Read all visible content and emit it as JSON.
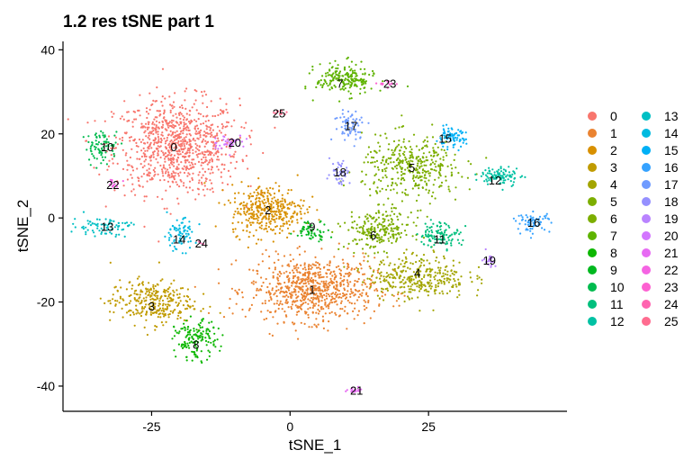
{
  "chart_data": {
    "type": "scatter",
    "title": "1.2 res tSNE part 1",
    "xlabel": "tSNE_1",
    "ylabel": "tSNE_2",
    "xlim": [
      -41,
      50
    ],
    "ylim": [
      -46,
      42
    ],
    "x_ticks": [
      -25,
      0,
      25
    ],
    "y_ticks": [
      -40,
      -20,
      0,
      20,
      40
    ],
    "grid": false,
    "legend_position": "right",
    "clusters": [
      {
        "id": "0",
        "color": "#F8766D",
        "cx": -20.5,
        "cy": 17,
        "sx": 7.5,
        "sy": 7.5,
        "n": 900
      },
      {
        "id": "1",
        "color": "#EA8331",
        "cx": 4,
        "cy": -17,
        "sx": 7.5,
        "sy": 5,
        "n": 750
      },
      {
        "id": "2",
        "color": "#D89000",
        "cx": -4,
        "cy": 2,
        "sx": 4.5,
        "sy": 4,
        "n": 380
      },
      {
        "id": "3",
        "color": "#C09B00",
        "cx": -25,
        "cy": -20,
        "sx": 5,
        "sy": 3.5,
        "n": 300
      },
      {
        "id": "4",
        "color": "#A3A500",
        "cx": 23,
        "cy": -14,
        "sx": 6,
        "sy": 3.5,
        "n": 330
      },
      {
        "id": "5",
        "color": "#7CAE00",
        "cx": 22,
        "cy": 12,
        "sx": 6,
        "sy": 5,
        "n": 380
      },
      {
        "id": "6",
        "color": "#7CAE00",
        "cx": 16,
        "cy": -3,
        "sx": 4,
        "sy": 3,
        "n": 230
      },
      {
        "id": "7",
        "color": "#5EB300",
        "cx": 10,
        "cy": 33,
        "sx": 3.5,
        "sy": 2.5,
        "n": 200
      },
      {
        "id": "8",
        "color": "#0CB702",
        "cx": -17,
        "cy": -29,
        "sx": 2.5,
        "sy": 3,
        "n": 150
      },
      {
        "id": "9",
        "color": "#00B81F",
        "cx": 4,
        "cy": -3,
        "sx": 2,
        "sy": 1.5,
        "n": 60
      },
      {
        "id": "10",
        "color": "#00BB4E",
        "cx": -34,
        "cy": 17,
        "sx": 2,
        "sy": 2.5,
        "n": 80
      },
      {
        "id": "11",
        "color": "#00BF7D",
        "cx": 27,
        "cy": -4,
        "sx": 2.5,
        "sy": 2,
        "n": 110
      },
      {
        "id": "12",
        "color": "#00C1A3",
        "cx": 38,
        "cy": 10,
        "sx": 2.5,
        "sy": 1.5,
        "n": 100
      },
      {
        "id": "13",
        "color": "#00BFC4",
        "cx": -34,
        "cy": -2,
        "sx": 3.5,
        "sy": 1.5,
        "n": 80
      },
      {
        "id": "14",
        "color": "#00BAE0",
        "cx": -20,
        "cy": -4,
        "sx": 2,
        "sy": 2.5,
        "n": 80
      },
      {
        "id": "15",
        "color": "#00B0F6",
        "cx": 29,
        "cy": 19,
        "sx": 1.8,
        "sy": 1.5,
        "n": 80
      },
      {
        "id": "16",
        "color": "#35A2FF",
        "cx": 44,
        "cy": -1,
        "sx": 2,
        "sy": 1.5,
        "n": 70
      },
      {
        "id": "17",
        "color": "#6F9BFF",
        "cx": 11,
        "cy": 22,
        "sx": 2,
        "sy": 2.5,
        "n": 70
      },
      {
        "id": "18",
        "color": "#9590FF",
        "cx": 9,
        "cy": 11,
        "sx": 1.2,
        "sy": 2,
        "n": 45
      },
      {
        "id": "19",
        "color": "#B983FF",
        "cx": 36,
        "cy": -10,
        "sx": 0.8,
        "sy": 1.2,
        "n": 20
      },
      {
        "id": "20",
        "color": "#D376FF",
        "cx": -11,
        "cy": 18,
        "sx": 2,
        "sy": 1.2,
        "n": 40
      },
      {
        "id": "21",
        "color": "#E76BF3",
        "cx": 12,
        "cy": -41,
        "sx": 1.2,
        "sy": 0.4,
        "n": 20
      },
      {
        "id": "22",
        "color": "#F564E3",
        "cx": -32,
        "cy": 8,
        "sx": 1,
        "sy": 0.6,
        "n": 15
      },
      {
        "id": "23",
        "color": "#FD61D1",
        "cx": 18,
        "cy": 32,
        "sx": 1.2,
        "sy": 0.6,
        "n": 15
      },
      {
        "id": "24",
        "color": "#FF64B0",
        "cx": -16,
        "cy": -6,
        "sx": 0.3,
        "sy": 0.3,
        "n": 3
      },
      {
        "id": "25",
        "color": "#FF6C90",
        "cx": -2,
        "cy": 25,
        "sx": 1,
        "sy": 0.4,
        "n": 10
      }
    ],
    "label_points": [
      {
        "id": "0",
        "x": -21,
        "y": 17
      },
      {
        "id": "1",
        "x": 4,
        "y": -17
      },
      {
        "id": "2",
        "x": -4,
        "y": 2
      },
      {
        "id": "3",
        "x": -25,
        "y": -21
      },
      {
        "id": "4",
        "x": 23,
        "y": -13
      },
      {
        "id": "5",
        "x": 22,
        "y": 12
      },
      {
        "id": "6",
        "x": 15,
        "y": -4
      },
      {
        "id": "7",
        "x": 9,
        "y": 32
      },
      {
        "id": "8",
        "x": -17,
        "y": -30
      },
      {
        "id": "9",
        "x": 4,
        "y": -2
      },
      {
        "id": "10",
        "x": -33,
        "y": 17
      },
      {
        "id": "11",
        "x": 27,
        "y": -5
      },
      {
        "id": "12",
        "x": 37,
        "y": 9
      },
      {
        "id": "13",
        "x": -33,
        "y": -2
      },
      {
        "id": "14",
        "x": -20,
        "y": -5
      },
      {
        "id": "15",
        "x": 28,
        "y": 19
      },
      {
        "id": "16",
        "x": 44,
        "y": -1
      },
      {
        "id": "17",
        "x": 11,
        "y": 22
      },
      {
        "id": "18",
        "x": 9,
        "y": 11
      },
      {
        "id": "19",
        "x": 36,
        "y": -10
      },
      {
        "id": "20",
        "x": -10,
        "y": 18
      },
      {
        "id": "21",
        "x": 12,
        "y": -41
      },
      {
        "id": "22",
        "x": -32,
        "y": 8
      },
      {
        "id": "23",
        "x": 18,
        "y": 32
      },
      {
        "id": "24",
        "x": -16,
        "y": -6
      },
      {
        "id": "25",
        "x": -2,
        "y": 25
      }
    ]
  }
}
